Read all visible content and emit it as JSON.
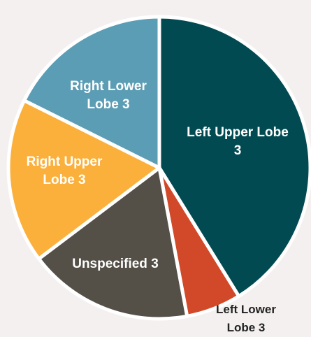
{
  "chart_data": {
    "type": "pie",
    "categories": [
      "Left Upper Lobe 3",
      "Left Lower Lobe 3",
      "Unspecified 3",
      "Right Upper Lobe 3",
      "Right Lower Lobe 3"
    ],
    "values": [
      7,
      1,
      3,
      3,
      3
    ],
    "colors": [
      "#024a52",
      "#d2492a",
      "#545048",
      "#fbb03b",
      "#5b9db5"
    ],
    "label_colors": [
      "#ffffff",
      "#222222",
      "#ffffff",
      "#ffffff",
      "#ffffff"
    ]
  }
}
